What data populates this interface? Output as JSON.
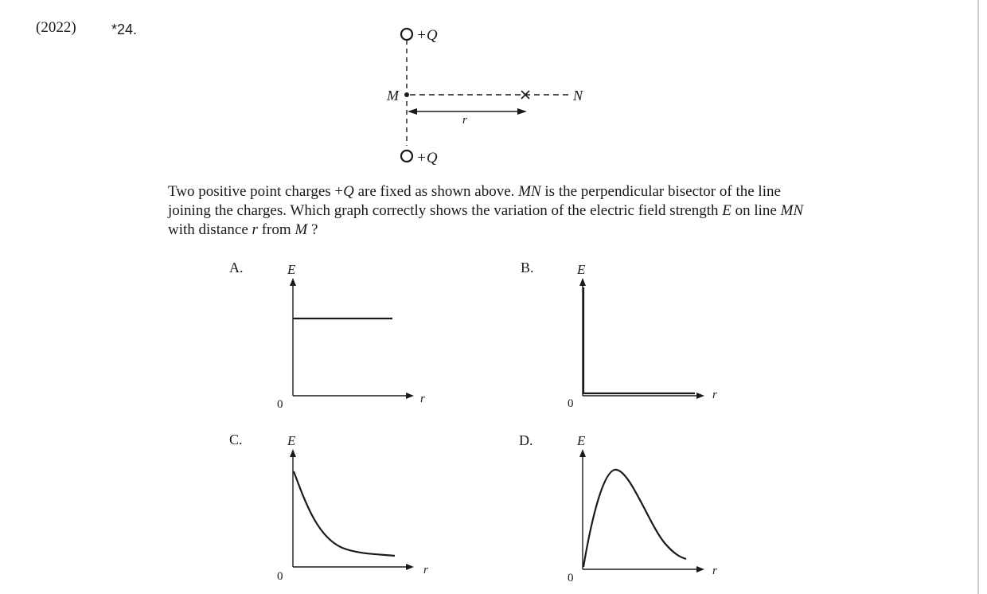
{
  "header": {
    "year": "(2022)",
    "number": "*24."
  },
  "figure": {
    "charge_top": "+Q",
    "charge_bottom": "+Q",
    "point_m": "M",
    "point_n": "N",
    "distance_label": "r"
  },
  "question": {
    "line1_a": "Two positive point charges +",
    "line1_q": "Q",
    "line1_b": " are fixed as shown above. ",
    "line1_mn": "MN",
    "line1_c": " is the perpendicular bisector of the line",
    "line2_a": "joining the charges. Which graph correctly shows the variation of the electric field strength ",
    "line2_e": "E",
    "line2_b": " on line ",
    "line2_mn": "MN",
    "line3_a": "with distance ",
    "line3_r": "r",
    "line3_b": " from ",
    "line3_m": "M",
    "line3_c": " ?"
  },
  "options": [
    {
      "letter": "A.",
      "y_axis": "E",
      "x_axis": "r",
      "origin": "0",
      "shape": "constant"
    },
    {
      "letter": "B.",
      "y_axis": "E",
      "x_axis": "r",
      "origin": "0",
      "shape": "spike-then-zero"
    },
    {
      "letter": "C.",
      "y_axis": "E",
      "x_axis": "r",
      "origin": "0",
      "shape": "decreasing"
    },
    {
      "letter": "D.",
      "y_axis": "E",
      "x_axis": "r",
      "origin": "0",
      "shape": "rise-then-fall"
    }
  ]
}
